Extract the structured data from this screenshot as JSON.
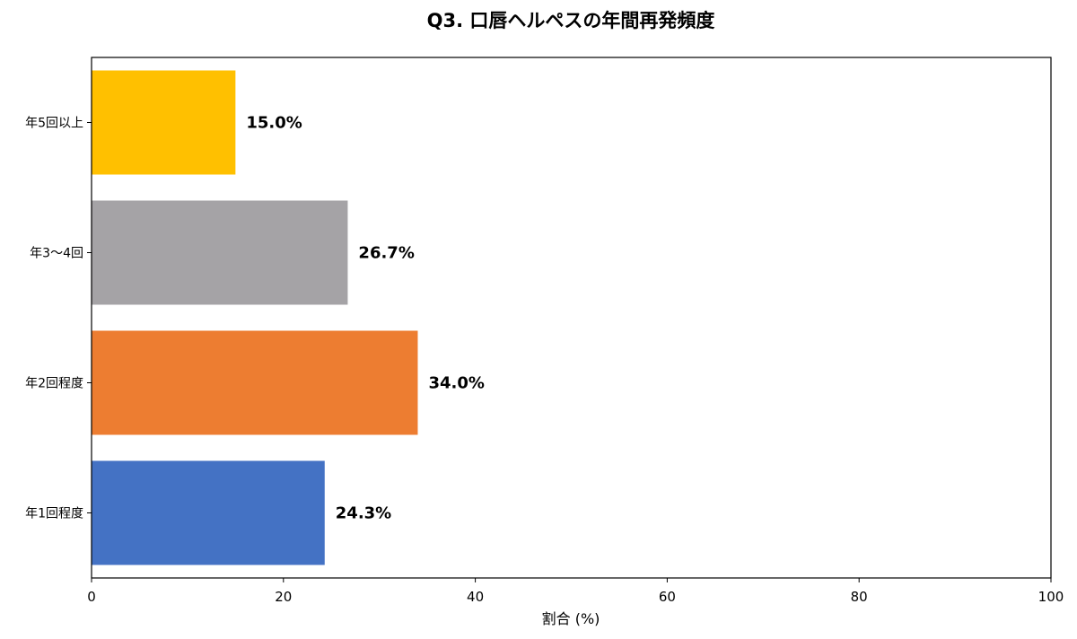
{
  "chart_data": {
    "type": "bar",
    "orientation": "horizontal",
    "title": "Q3. 口唇ヘルペスの年間再発頻度",
    "xlabel": "割合 (%)",
    "ylabel": "",
    "xlim": [
      0,
      100
    ],
    "xticks": [
      0,
      20,
      40,
      60,
      80,
      100
    ],
    "categories": [
      "年5回以上",
      "年3〜4回",
      "年2回程度",
      "年1回程度"
    ],
    "values": [
      15.0,
      26.7,
      34.0,
      24.3
    ],
    "data_labels": [
      "15.0%",
      "26.7%",
      "34.0%",
      "24.3%"
    ],
    "colors": [
      "#FFC000",
      "#A5A3A6",
      "#ED7D31",
      "#4472C4"
    ],
    "grid": false,
    "legend": "none"
  }
}
